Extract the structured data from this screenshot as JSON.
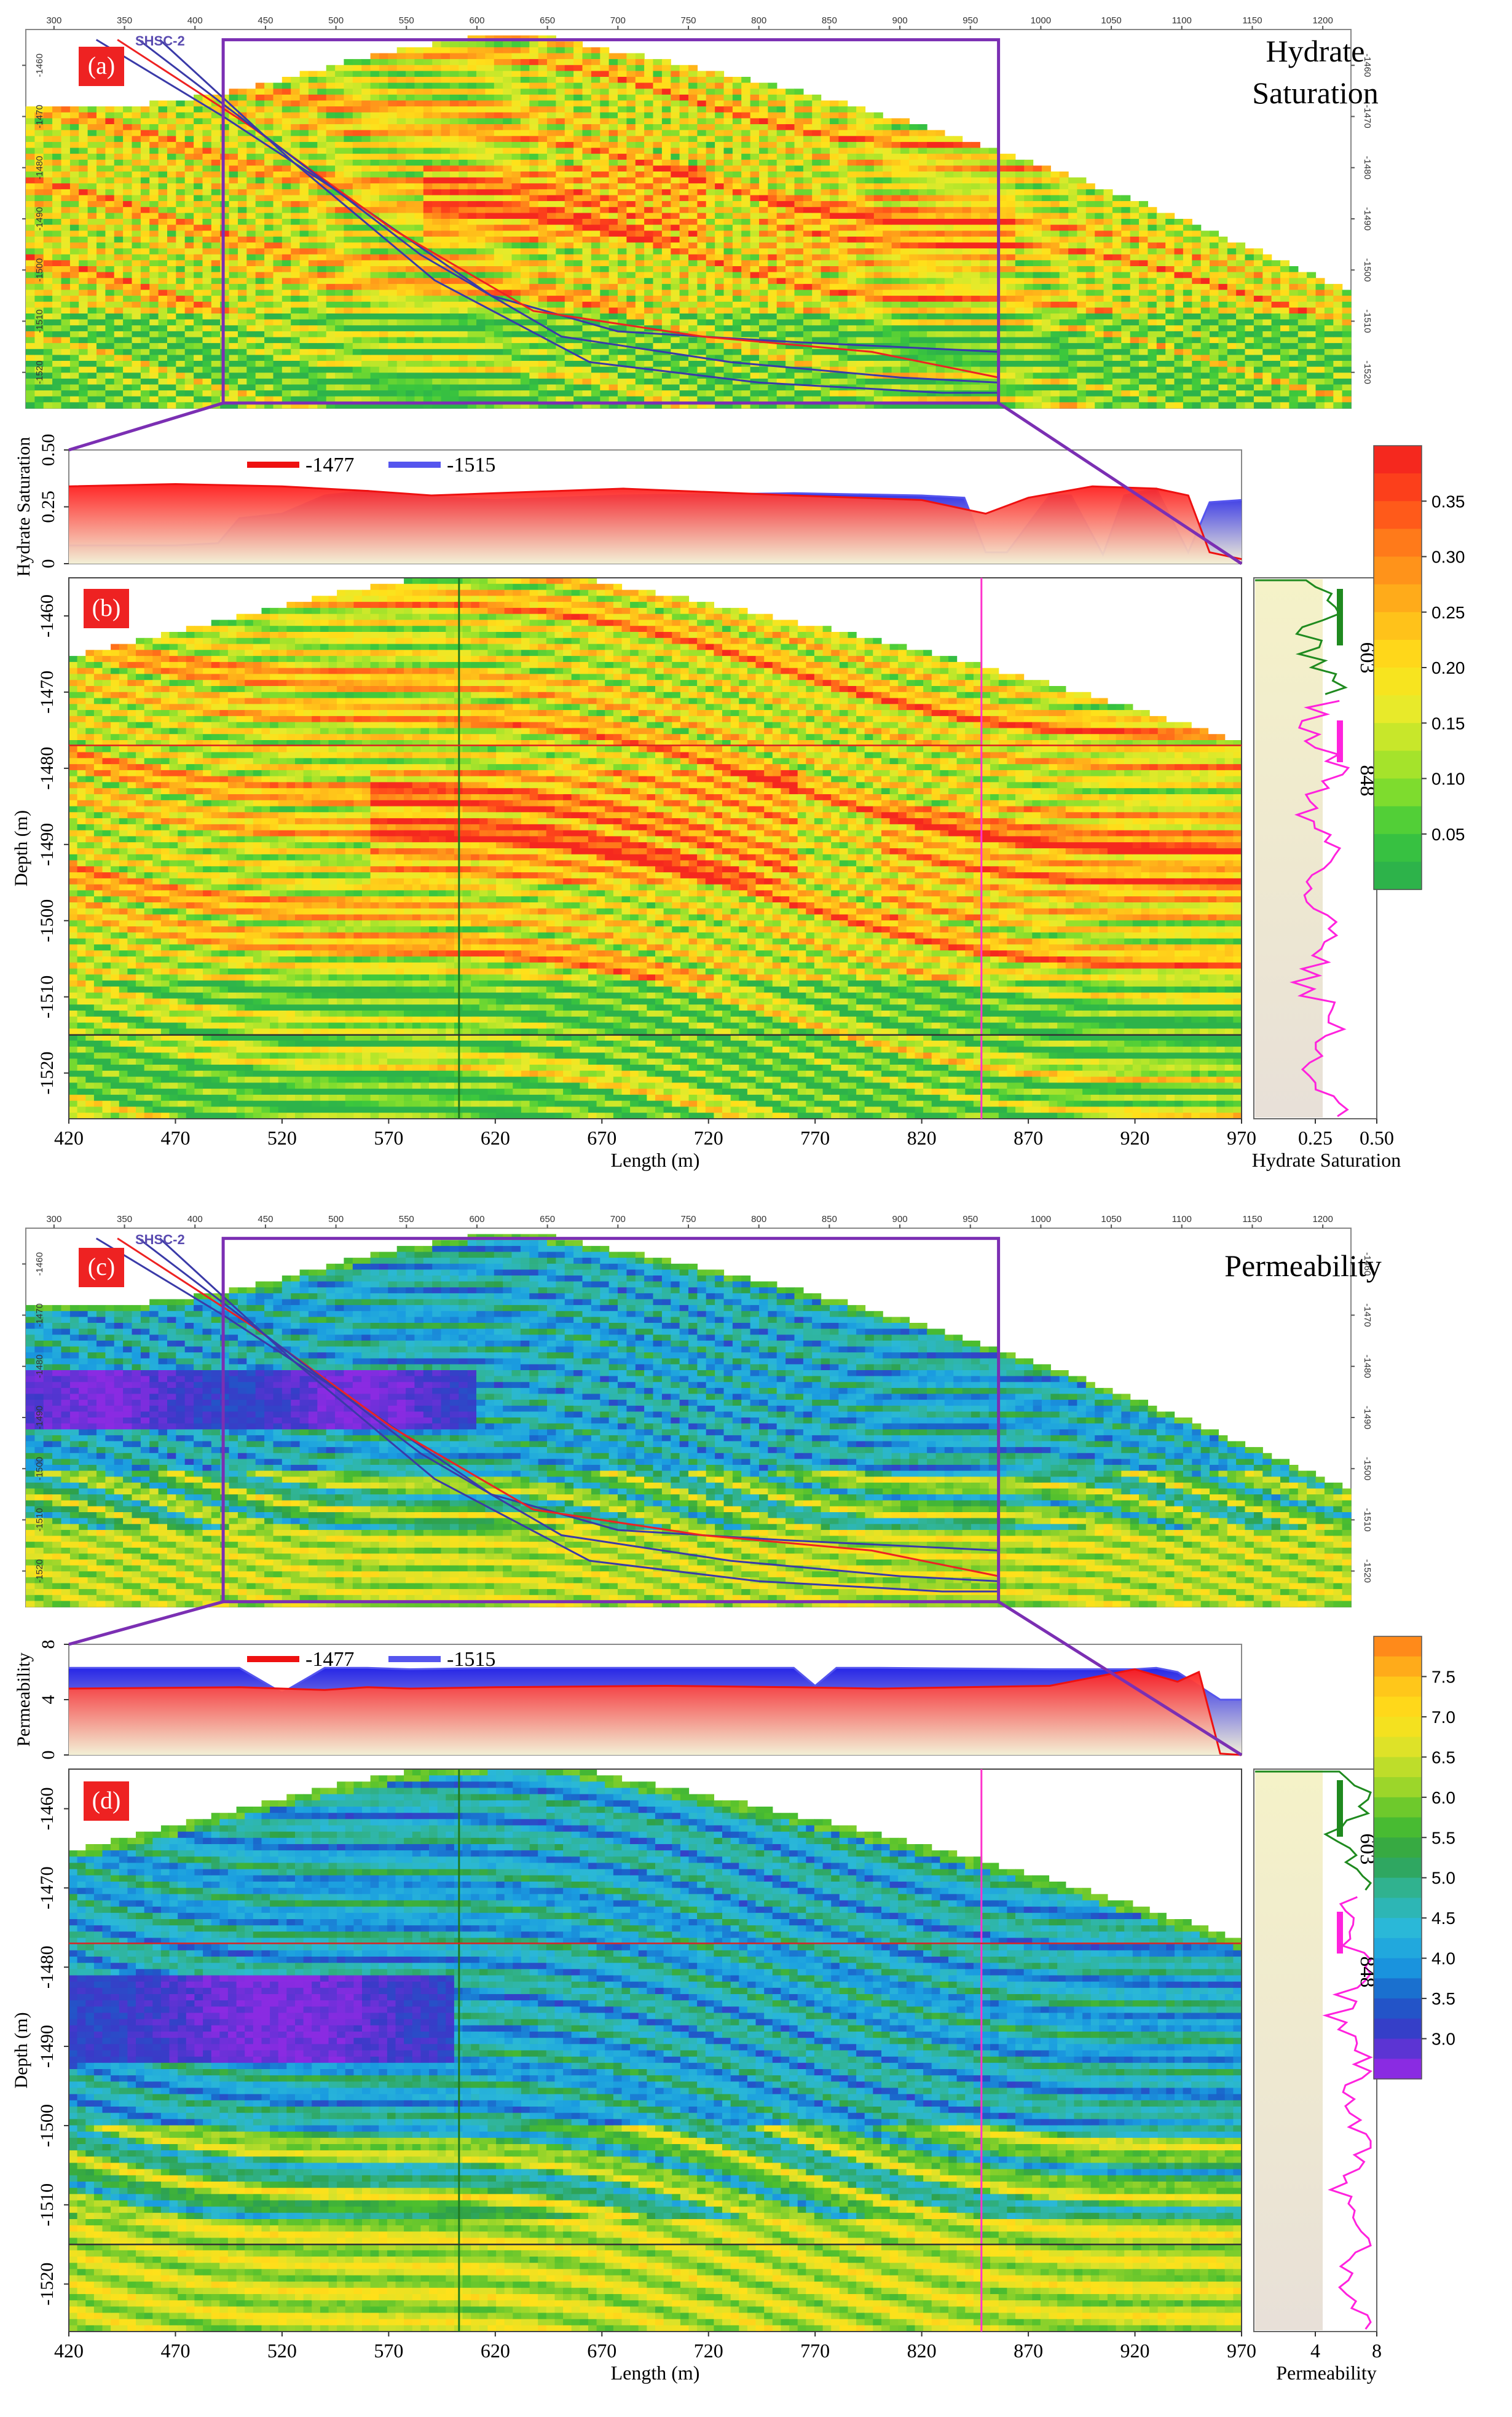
{
  "chart_data": [
    {
      "panel": "(a)",
      "type": "heatmap",
      "title": "Hydrate Saturation",
      "overlay_label": "SHSC-2",
      "x_ticks": [
        300,
        350,
        400,
        450,
        500,
        550,
        600,
        650,
        700,
        750,
        800,
        850,
        900,
        950,
        1000,
        1050,
        1100,
        1150,
        1200
      ],
      "y_ticks": [
        -1460,
        -1470,
        -1480,
        -1490,
        -1500,
        -1510,
        -1520
      ],
      "xlim": [
        280,
        1220
      ],
      "ylim": [
        -1527,
        -1453
      ],
      "zoom_window": {
        "x": [
          420,
          970
        ],
        "y": [
          -1526,
          -1455
        ]
      }
    },
    {
      "panel": "profile-1",
      "type": "area",
      "ylabel": "Hydrate Saturation",
      "y_ticks": [
        0,
        0.25,
        0.5
      ],
      "y_tick_labels": [
        "0",
        "0.25",
        "0.50"
      ],
      "ylim": [
        0,
        0.5
      ],
      "series": [
        {
          "name": "-1477",
          "color": "#ee1111",
          "x": [
            420,
            470,
            520,
            560,
            590,
            620,
            680,
            760,
            820,
            850,
            870,
            900,
            930,
            945,
            955,
            970
          ],
          "values": [
            0.34,
            0.35,
            0.34,
            0.32,
            0.3,
            0.31,
            0.33,
            0.3,
            0.28,
            0.22,
            0.29,
            0.34,
            0.33,
            0.3,
            0.05,
            0.02
          ]
        },
        {
          "name": "-1515",
          "color": "#5555ee",
          "x": [
            420,
            470,
            490,
            500,
            520,
            540,
            560,
            580,
            620,
            680,
            760,
            820,
            840,
            850,
            860,
            880,
            890,
            905,
            915,
            930,
            945,
            955,
            970
          ],
          "values": [
            0.08,
            0.08,
            0.09,
            0.2,
            0.22,
            0.3,
            0.32,
            0.3,
            0.28,
            0.3,
            0.31,
            0.3,
            0.29,
            0.05,
            0.05,
            0.3,
            0.3,
            0.04,
            0.3,
            0.33,
            0.05,
            0.27,
            0.28
          ]
        }
      ]
    },
    {
      "panel": "(b)",
      "type": "heatmap",
      "xlabel": "Length (m)",
      "ylabel": "Depth (m)",
      "x_ticks": [
        420,
        470,
        520,
        570,
        620,
        670,
        720,
        770,
        820,
        870,
        920,
        970
      ],
      "y_ticks": [
        -1460,
        -1470,
        -1480,
        -1490,
        -1500,
        -1510,
        -1520
      ],
      "xlim": [
        420,
        970
      ],
      "ylim": [
        -1526,
        -1455
      ],
      "vertical_lines": [
        {
          "x": 603,
          "color": "#1f7a1f"
        },
        {
          "x": 848,
          "color": "#ff33cc"
        }
      ],
      "horizontal_lines": [
        {
          "y": -1477,
          "color": "#dd2222"
        },
        {
          "y": -1515,
          "color": "#333333"
        }
      ]
    },
    {
      "panel": "well-log-1",
      "type": "area",
      "xlabel": "Hydrate Saturation",
      "x_ticks": [
        0.25,
        0.5
      ],
      "x_tick_labels": [
        "0.25",
        "0.50"
      ],
      "xlim": [
        0,
        0.5
      ],
      "series": [
        {
          "name": "603",
          "color": "#1f8a1f"
        },
        {
          "name": "848",
          "color": "#ff22dd"
        }
      ]
    },
    {
      "panel": "colorbar-1",
      "type": "heatmap",
      "ticks": [
        "0.35",
        "0.30",
        "0.25",
        "0.20",
        "0.15",
        "0.10",
        "0.05"
      ],
      "range": [
        0,
        0.37
      ]
    },
    {
      "panel": "(c)",
      "type": "heatmap",
      "title": "Permeability",
      "overlay_label": "SHSC-2",
      "x_ticks": [
        300,
        350,
        400,
        450,
        500,
        550,
        600,
        650,
        700,
        750,
        800,
        850,
        900,
        950,
        1000,
        1050,
        1100,
        1150,
        1200
      ],
      "y_ticks": [
        -1460,
        -1470,
        -1480,
        -1490,
        -1500,
        -1510,
        -1520
      ],
      "xlim": [
        280,
        1220
      ],
      "ylim": [
        -1527,
        -1453
      ],
      "zoom_window": {
        "x": [
          420,
          970
        ],
        "y": [
          -1526,
          -1455
        ]
      }
    },
    {
      "panel": "profile-2",
      "type": "area",
      "ylabel": "Permeability",
      "y_ticks": [
        0,
        4,
        8
      ],
      "ylim": [
        0,
        8
      ],
      "series": [
        {
          "name": "-1477",
          "color": "#ee1111",
          "x": [
            420,
            500,
            540,
            560,
            580,
            620,
            700,
            760,
            800,
            880,
            920,
            940,
            950,
            960,
            970
          ],
          "values": [
            4.8,
            4.9,
            4.7,
            4.9,
            4.8,
            4.9,
            5.0,
            4.9,
            4.8,
            5.0,
            6.2,
            5.3,
            6.0,
            0.1,
            0.0
          ]
        },
        {
          "name": "-1515",
          "color": "#5555ee",
          "x": [
            420,
            500,
            520,
            540,
            560,
            580,
            620,
            700,
            760,
            770,
            780,
            800,
            880,
            920,
            930,
            940,
            960,
            970
          ],
          "values": [
            6.3,
            6.3,
            4.5,
            6.3,
            6.3,
            6.2,
            6.3,
            6.3,
            6.3,
            5.0,
            6.3,
            6.3,
            6.2,
            6.2,
            6.3,
            6.0,
            4.0,
            4.0
          ]
        }
      ]
    },
    {
      "panel": "(d)",
      "type": "heatmap",
      "xlabel": "Length (m)",
      "ylabel": "Depth (m)",
      "x_ticks": [
        420,
        470,
        520,
        570,
        620,
        670,
        720,
        770,
        820,
        870,
        920,
        970
      ],
      "y_ticks": [
        -1460,
        -1470,
        -1480,
        -1490,
        -1500,
        -1510,
        -1520
      ],
      "xlim": [
        420,
        970
      ],
      "ylim": [
        -1526,
        -1455
      ],
      "vertical_lines": [
        {
          "x": 603,
          "color": "#1f7a1f"
        },
        {
          "x": 848,
          "color": "#ff33cc"
        }
      ],
      "horizontal_lines": [
        {
          "y": -1477,
          "color": "#dd2222"
        },
        {
          "y": -1515,
          "color": "#333333"
        }
      ]
    },
    {
      "panel": "well-log-2",
      "type": "area",
      "xlabel": "Permeability",
      "x_ticks": [
        4,
        8
      ],
      "xlim": [
        0,
        8
      ],
      "series": [
        {
          "name": "603",
          "color": "#1f8a1f"
        },
        {
          "name": "848",
          "color": "#ff22dd"
        }
      ]
    },
    {
      "panel": "colorbar-2",
      "type": "heatmap",
      "ticks": [
        "7.5",
        "7.0",
        "6.5",
        "6.0",
        "5.5",
        "5.0",
        "4.5",
        "4.0",
        "3.5",
        "3.0"
      ],
      "range": [
        2.8,
        7.8
      ]
    }
  ],
  "colors": {
    "hydrate_scale": [
      "#2db34a",
      "#3cc83c",
      "#7edc2e",
      "#b8e62a",
      "#e8ea2a",
      "#ffe11a",
      "#ffc21a",
      "#ff9f1a",
      "#ff7a1a",
      "#ff4a1a",
      "#f5281e"
    ],
    "perm_scale": [
      "#8a2be2",
      "#3a3ac8",
      "#1a5fc8",
      "#1a9ce0",
      "#2ab8d8",
      "#30b59a",
      "#2ea14a",
      "#4cbf2e",
      "#9cd62a",
      "#d8e22a",
      "#ffe11a",
      "#ffc31a",
      "#ff8a1a"
    ],
    "window_frame": "#7b2fb3",
    "well_603": "#1f8a1f",
    "well_848": "#ff22dd",
    "panel_badge": "#ee2222"
  }
}
